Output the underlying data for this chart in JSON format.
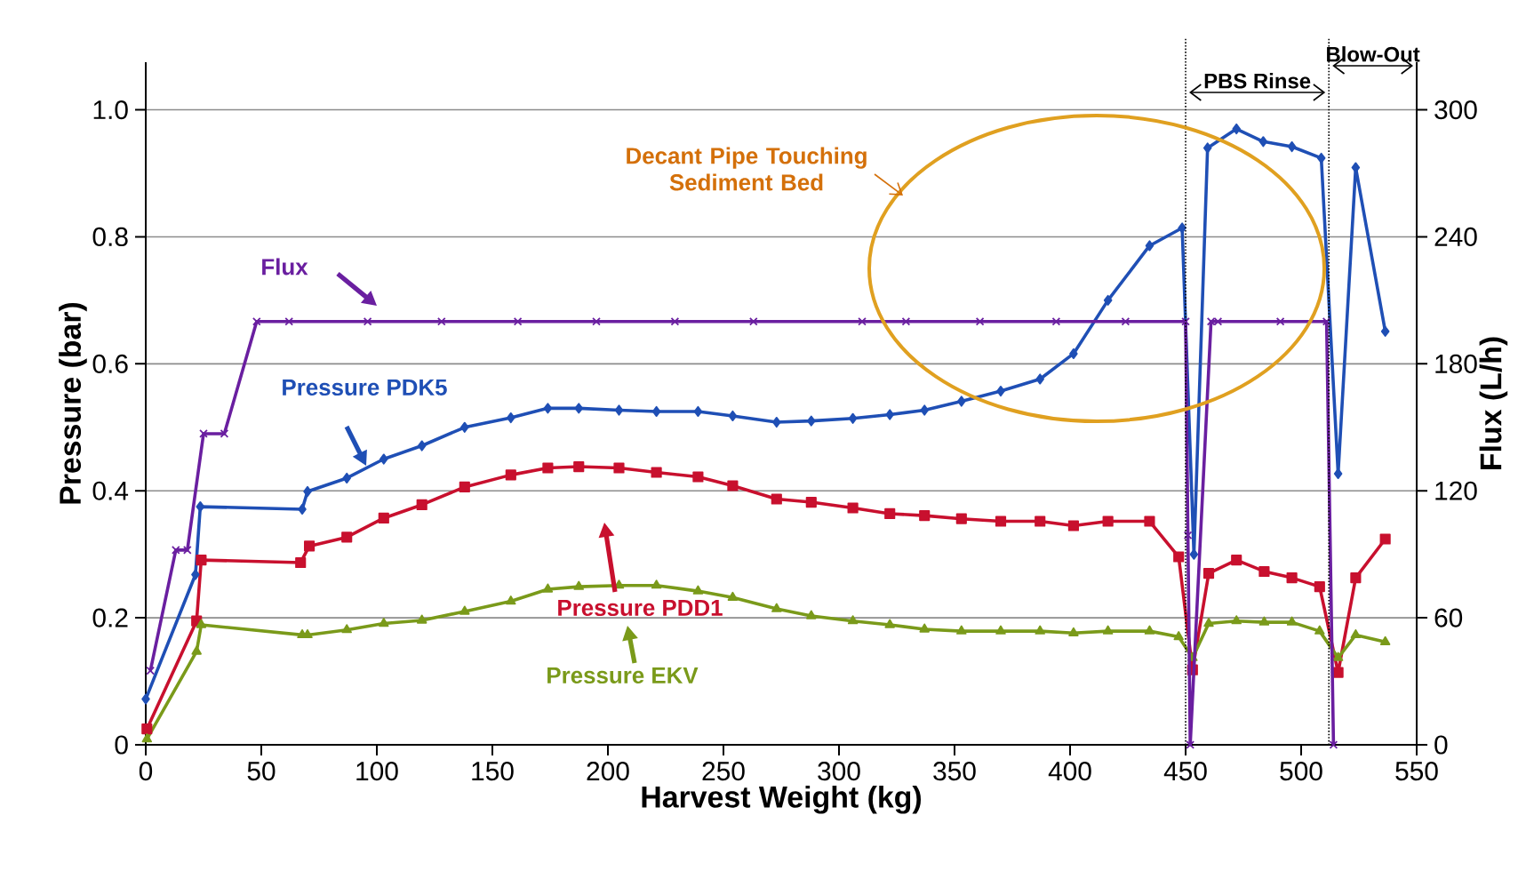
{
  "chart_data": {
    "type": "line",
    "xlabel": "Harvest Weight (kg)",
    "ylabel": "Pressure (bar)",
    "y2label": "Flux (L/h)",
    "xlim": [
      0,
      550
    ],
    "xticks": [
      0,
      50,
      100,
      150,
      200,
      250,
      300,
      350,
      400,
      450,
      500,
      550
    ],
    "ylim": [
      0,
      1.075
    ],
    "yticks": [
      0,
      0.2,
      0.4,
      0.6,
      0.8,
      {
        "value": 1,
        "label": "1.0"
      }
    ],
    "y2lim": [
      0,
      322.5
    ],
    "y2ticks": [
      0,
      60,
      120,
      180,
      240,
      300
    ],
    "grid": "y",
    "ref_lines": [
      {
        "axis": "x",
        "value": 450,
        "line_style": "dotted"
      },
      {
        "axis": "x",
        "value": 512,
        "line_style": "dotted"
      }
    ],
    "annotations": [
      "Decant Pipe Touching Sediment Bed",
      "PBS Rinse",
      "Blow-Out"
    ],
    "series": [
      {
        "name": "Pressure PDK5",
        "color": "#1f4fb5",
        "marker": "diamond",
        "x": [
          0,
          21.5,
          23.6,
          67.7,
          70,
          87,
          103,
          119.5,
          138,
          158,
          174,
          187.4,
          204.8,
          221,
          239,
          254,
          273,
          288,
          306,
          322,
          337,
          353,
          370,
          387,
          401.5,
          416.4,
          434.4,
          448.5,
          453.6,
          459.5,
          472,
          483.6,
          496,
          508.7,
          516,
          523.6,
          536.4
        ],
        "values": [
          0.072,
          0.268,
          0.375,
          0.371,
          0.399,
          0.42,
          0.45,
          0.471,
          0.5,
          0.515,
          0.53,
          0.53,
          0.527,
          0.525,
          0.525,
          0.518,
          0.508,
          0.51,
          0.514,
          0.52,
          0.527,
          0.541,
          0.557,
          0.576,
          0.616,
          0.7,
          0.786,
          0.814,
          0.3,
          0.94,
          0.97,
          0.95,
          0.942,
          0.924,
          0.427,
          0.909,
          0.651
        ]
      },
      {
        "name": "Pressure PDD1",
        "color": "#c8102e",
        "marker": "square",
        "x": [
          0.5,
          22,
          24,
          67,
          70.8,
          87,
          103,
          119.5,
          138,
          158,
          174,
          187.4,
          204.8,
          221,
          239,
          254,
          273,
          288,
          306,
          322,
          337,
          353,
          370,
          387,
          401.5,
          416.4,
          434.4,
          447,
          453,
          460,
          472,
          484,
          496,
          508,
          516,
          523.6,
          536.4
        ],
        "values": [
          0.025,
          0.195,
          0.291,
          0.287,
          0.313,
          0.327,
          0.357,
          0.378,
          0.406,
          0.425,
          0.436,
          0.438,
          0.436,
          0.429,
          0.422,
          0.408,
          0.387,
          0.382,
          0.373,
          0.364,
          0.361,
          0.356,
          0.352,
          0.352,
          0.345,
          0.352,
          0.352,
          0.296,
          0.118,
          0.27,
          0.291,
          0.273,
          0.263,
          0.249,
          0.114,
          0.263,
          0.324
        ]
      },
      {
        "name": "Pressure EKV",
        "color": "#7a9a1a",
        "marker": "triangle",
        "x": [
          0.5,
          22,
          24,
          67.7,
          70,
          87,
          103,
          119.5,
          138,
          158,
          174,
          187.4,
          204.8,
          221,
          239,
          254,
          273,
          288,
          306,
          322,
          337,
          353,
          370,
          387,
          401.5,
          416.4,
          434.4,
          447,
          453,
          460,
          472,
          484,
          496,
          508,
          516,
          523.6,
          536.4
        ],
        "values": [
          0.009,
          0.147,
          0.189,
          0.173,
          0.173,
          0.181,
          0.191,
          0.196,
          0.21,
          0.226,
          0.245,
          0.249,
          0.251,
          0.251,
          0.242,
          0.232,
          0.214,
          0.203,
          0.195,
          0.189,
          0.182,
          0.179,
          0.179,
          0.179,
          0.176,
          0.179,
          0.179,
          0.17,
          0.137,
          0.191,
          0.195,
          0.193,
          0.193,
          0.179,
          0.137,
          0.173,
          0.162
        ]
      },
      {
        "name": "Flux",
        "color": "#6a1fa0",
        "marker": "cross",
        "axis": "y2",
        "x": [
          2,
          13,
          18,
          25,
          34,
          48,
          62,
          96,
          128,
          161,
          195,
          229,
          263,
          310,
          329,
          361,
          394,
          424,
          450,
          451,
          452,
          461,
          464,
          491,
          511,
          514
        ],
        "values": [
          35,
          92,
          92,
          147,
          147,
          200,
          200,
          200,
          200,
          200,
          200,
          200,
          200,
          200,
          200,
          200,
          200,
          200,
          200,
          99,
          0,
          200,
          200,
          200,
          200,
          0
        ]
      }
    ]
  }
}
